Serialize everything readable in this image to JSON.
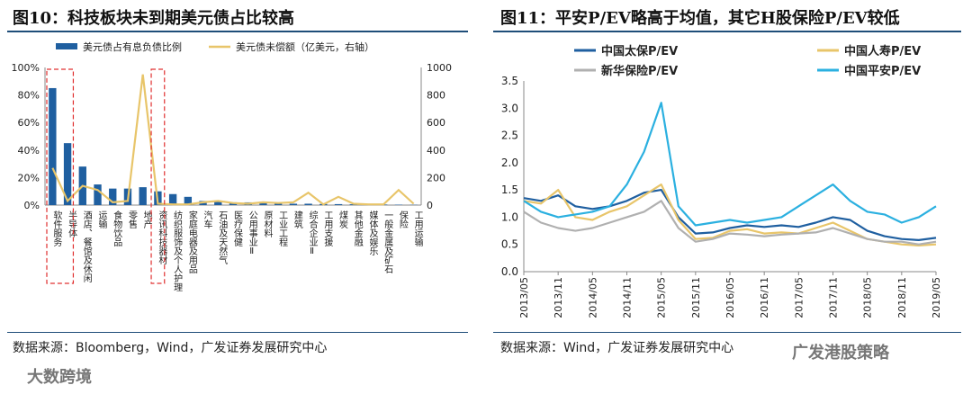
{
  "left": {
    "title": "图10：科技板块未到期美元债占比较高",
    "source": "数据来源：Bloomberg，Wind，广发证券发展研究中心",
    "chart_data": {
      "type": "bar",
      "title": "图10：科技板块未到期美元债占比较高",
      "categories": [
        "软件服务",
        "半导体",
        "酒店、餐馆及休闲",
        "运输",
        "食物饮品",
        "零售",
        "地产",
        "资讯科技器材",
        "纺织服饰及个人护理",
        "家庭电器及用品",
        "汽车",
        "石油及天然气",
        "医疗保健",
        "公用事业Ⅱ",
        "原材料",
        "工业工程",
        "建筑",
        "综合企业Ⅱ",
        "工用支援",
        "煤炭",
        "其他金融",
        "媒体及娱乐",
        "一般金属及矿石",
        "保险",
        "工用运输"
      ],
      "series": [
        {
          "name": "美元债占有息负债比例",
          "axis": "left",
          "values": [
            85,
            45,
            28,
            15,
            12,
            12,
            13,
            10,
            8,
            6,
            3,
            2.5,
            2,
            2,
            1.5,
            1.2,
            1,
            1,
            0.8,
            0.7,
            0.6,
            0.5,
            0.4,
            0.3,
            0.2
          ]
        },
        {
          "name": "美元债未偿额（亿美元，右轴）",
          "axis": "right",
          "values": [
            270,
            30,
            140,
            110,
            20,
            30,
            950,
            10,
            5,
            5,
            20,
            30,
            15,
            10,
            20,
            15,
            20,
            90,
            5,
            60,
            10,
            5,
            5,
            110,
            10
          ]
        }
      ],
      "y_left": {
        "ticks": [
          "0%",
          "20%",
          "40%",
          "60%",
          "80%",
          "100%"
        ],
        "range": [
          0,
          100
        ]
      },
      "y_right": {
        "ticks": [
          "0",
          "200",
          "400",
          "600",
          "800",
          "1000"
        ],
        "range": [
          0,
          1000
        ]
      },
      "colors": {
        "bar": "#1f5fa0",
        "line": "#e8c56a",
        "highlight": "#e03030"
      }
    }
  },
  "right": {
    "title": "图11：平安P/EV略高于均值，其它H股保险P/EV较低",
    "source": "数据来源：Wind，广发证券发展研究中心",
    "chart_data": {
      "type": "line",
      "title": "图11：平安P/EV略高于均值，其它H股保险P/EV较低",
      "x_ticks": [
        "2013/05",
        "2013/11",
        "2014/05",
        "2014/11",
        "2015/05",
        "2015/11",
        "2016/05",
        "2016/11",
        "2017/05",
        "2017/11",
        "2018/05",
        "2018/11",
        "2019/05"
      ],
      "y_ticks": [
        "0.0",
        "0.5",
        "1.0",
        "1.5",
        "2.0",
        "2.5",
        "3.0",
        "3.5"
      ],
      "ylim": [
        0,
        3.5
      ],
      "series": [
        {
          "name": "中国太保P/EV",
          "color": "#1f5fa0",
          "x": [
            0,
            1,
            2,
            3,
            4,
            5,
            6,
            7,
            8,
            9,
            10,
            11,
            12,
            13,
            14,
            15,
            16,
            17,
            18,
            19,
            20,
            21,
            22,
            23,
            24
          ],
          "values": [
            1.35,
            1.3,
            1.4,
            1.2,
            1.15,
            1.2,
            1.3,
            1.45,
            1.5,
            1.0,
            0.7,
            0.72,
            0.8,
            0.85,
            0.82,
            0.85,
            0.82,
            0.9,
            1.0,
            0.95,
            0.75,
            0.65,
            0.6,
            0.58,
            0.62
          ]
        },
        {
          "name": "中国人寿P/EV",
          "color": "#e8c56a",
          "x": [
            0,
            1,
            2,
            3,
            4,
            5,
            6,
            7,
            8,
            9,
            10,
            11,
            12,
            13,
            14,
            15,
            16,
            17,
            18,
            19,
            20,
            21,
            22,
            23,
            24
          ],
          "values": [
            1.3,
            1.25,
            1.5,
            1.0,
            0.95,
            1.1,
            1.2,
            1.4,
            1.6,
            0.95,
            0.6,
            0.62,
            0.75,
            0.78,
            0.7,
            0.72,
            0.7,
            0.8,
            0.9,
            0.75,
            0.6,
            0.55,
            0.5,
            0.48,
            0.5
          ]
        },
        {
          "name": "新华保险P/EV",
          "color": "#b0b0b0",
          "x": [
            0,
            1,
            2,
            3,
            4,
            5,
            6,
            7,
            8,
            9,
            10,
            11,
            12,
            13,
            14,
            15,
            16,
            17,
            18,
            19,
            20,
            21,
            22,
            23,
            24
          ],
          "values": [
            1.1,
            0.9,
            0.8,
            0.75,
            0.8,
            0.9,
            1.0,
            1.1,
            1.3,
            0.8,
            0.55,
            0.6,
            0.7,
            0.68,
            0.65,
            0.68,
            0.7,
            0.72,
            0.8,
            0.7,
            0.6,
            0.55,
            0.55,
            0.5,
            0.55
          ]
        },
        {
          "name": "中国平安P/EV",
          "color": "#2bb0e0",
          "x": [
            0,
            1,
            2,
            3,
            4,
            5,
            6,
            7,
            8,
            9,
            10,
            11,
            12,
            13,
            14,
            15,
            16,
            17,
            18,
            19,
            20,
            21,
            22,
            23,
            24
          ],
          "values": [
            1.3,
            1.1,
            1.0,
            1.05,
            1.1,
            1.2,
            1.6,
            2.2,
            3.1,
            1.2,
            0.85,
            0.9,
            0.95,
            0.9,
            0.95,
            1.0,
            1.2,
            1.4,
            1.6,
            1.3,
            1.1,
            1.05,
            0.9,
            1.0,
            1.2
          ]
        }
      ]
    }
  },
  "watermarks": {
    "left": "大数跨境",
    "right": "广发港股策略"
  }
}
